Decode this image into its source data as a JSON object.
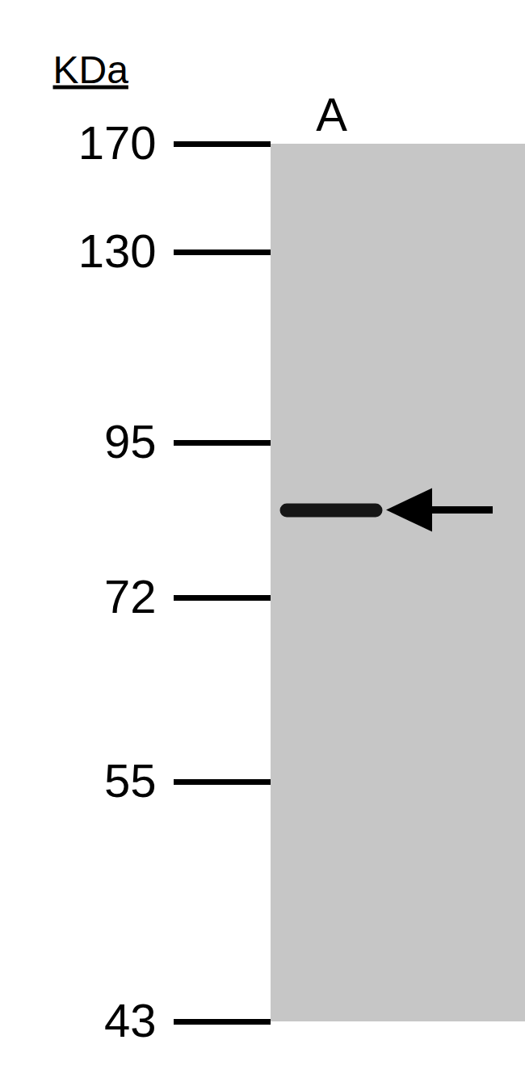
{
  "chart_data": {
    "type": "blot",
    "ylabel": "KDa",
    "categories": [
      "A"
    ],
    "values": [
      85
    ],
    "color": "#161616",
    "ylim": [
      43,
      170
    ],
    "yticks": [
      170,
      130,
      95,
      72,
      55,
      43
    ]
  }
}
